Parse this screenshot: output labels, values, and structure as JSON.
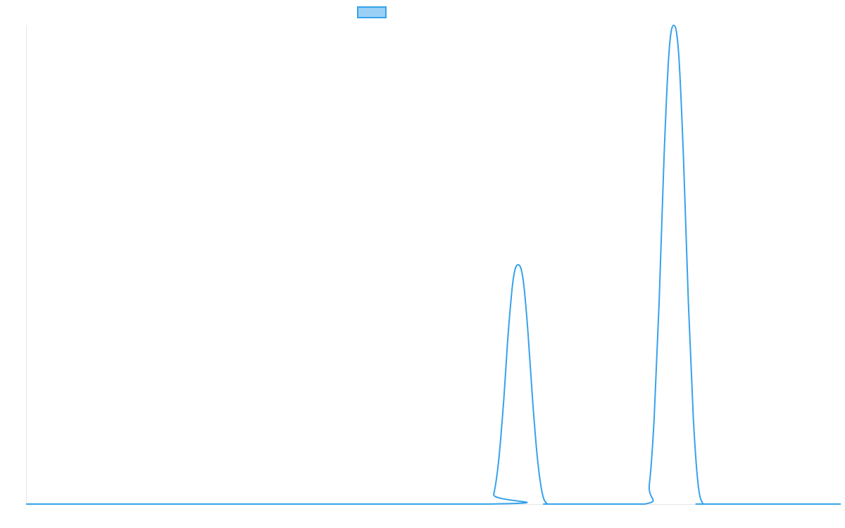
{
  "chart_data": {
    "type": "line",
    "title": "",
    "xlabel": "",
    "ylabel": "",
    "grid": false,
    "legend": {
      "placement": "top-center",
      "entries": [
        {
          "name": "",
          "color": "#36a2eb",
          "fill": "#9ad0f5"
        }
      ]
    },
    "x_range": [
      0,
      100
    ],
    "y_range": [
      0,
      1
    ],
    "series": [
      {
        "name": "",
        "color": "#36a2eb",
        "x": [
          0,
          56.8,
          57.4,
          58.0,
          58.6,
          59.2,
          59.8,
          60.4,
          61.0,
          61.6,
          62.2,
          62.8,
          63.4,
          64.0,
          64.6,
          75.9,
          76.5,
          77.1,
          77.7,
          78.3,
          78.9,
          79.5,
          80.1,
          80.7,
          81.3,
          81.9,
          82.5,
          83.1,
          83.7,
          100
        ],
        "y": [
          0,
          0,
          0.02,
          0.09,
          0.21,
          0.36,
          0.47,
          0.5,
          0.47,
          0.36,
          0.21,
          0.09,
          0.02,
          0,
          0,
          0,
          0.04,
          0.18,
          0.42,
          0.72,
          0.94,
          1.0,
          0.94,
          0.72,
          0.42,
          0.18,
          0.04,
          0,
          0,
          0
        ]
      }
    ]
  }
}
